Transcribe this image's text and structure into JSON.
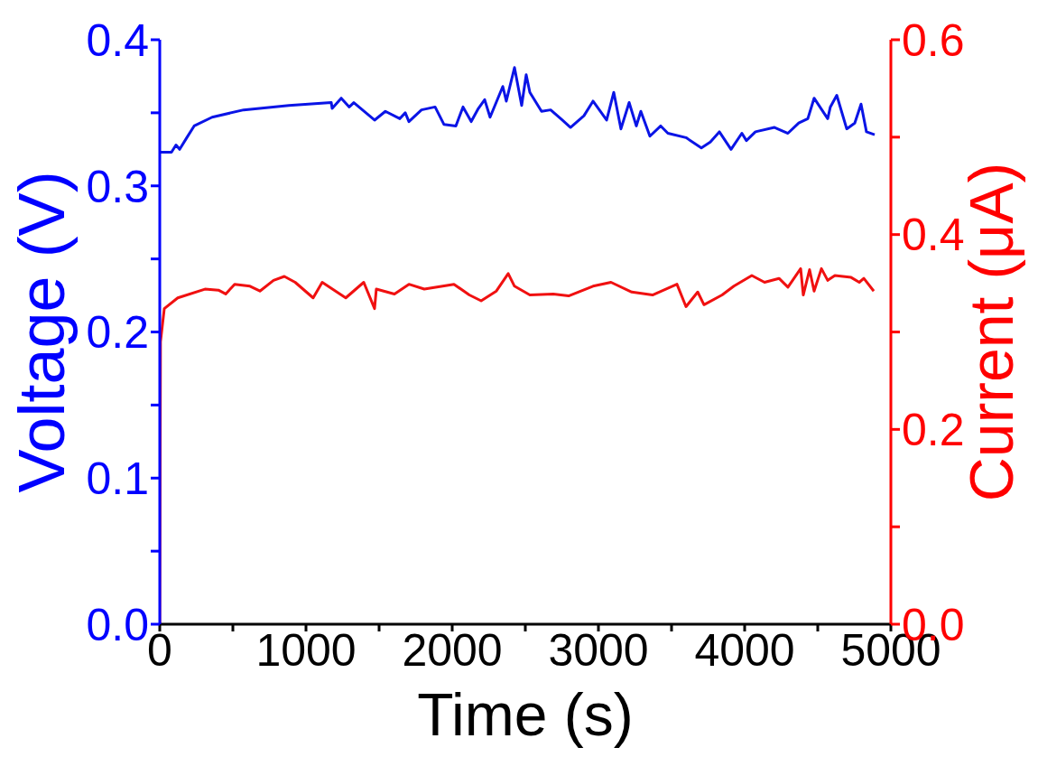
{
  "chart_data": {
    "type": "line",
    "xlabel": "Time (s)",
    "ylabel": "Voltage (V)",
    "y2label": "Current (μA)",
    "xlim": [
      0,
      5000
    ],
    "xticks": [
      0,
      {
        "value": 500,
        "label": null
      },
      1000,
      {
        "value": 1500,
        "label": null
      },
      2000,
      {
        "value": 2500,
        "label": null
      },
      3000,
      {
        "value": 3500,
        "label": null
      },
      4000,
      {
        "value": 4500,
        "label": null
      },
      5000
    ],
    "ylim": [
      0,
      0.4
    ],
    "yticks": [
      {
        "value": 0,
        "label": "0.0"
      },
      {
        "value": 0.05,
        "label": null
      },
      0.1,
      {
        "value": 0.15,
        "label": null
      },
      0.2,
      {
        "value": 0.25,
        "label": null
      },
      0.3,
      {
        "value": 0.35,
        "label": null
      },
      0.4
    ],
    "y2lim": [
      0,
      0.6
    ],
    "y2ticks": [
      {
        "value": 0,
        "label": "0.0"
      },
      {
        "value": 0.1,
        "label": null
      },
      0.2,
      {
        "value": 0.3,
        "label": null
      },
      0.4,
      {
        "value": 0.5,
        "label": null
      },
      0.6
    ],
    "marker": "none",
    "line_style": "solid",
    "series": [
      {
        "color": "#0a14e6",
        "axis": "y",
        "x": [
          0,
          80,
          111,
          136,
          185,
          235,
          358,
          574,
          883,
          1173,
          1179,
          1241,
          1296,
          1327,
          1469,
          1543,
          1642,
          1679,
          1704,
          1790,
          1883,
          1944,
          2025,
          2074,
          2130,
          2179,
          2222,
          2259,
          2346,
          2370,
          2426,
          2475,
          2506,
          2531,
          2611,
          2673,
          2753,
          2809,
          2901,
          2963,
          3056,
          3105,
          3154,
          3210,
          3259,
          3290,
          3352,
          3426,
          3475,
          3599,
          3704,
          3765,
          3827,
          3907,
          3981,
          4012,
          4074,
          4204,
          4296,
          4370,
          4432,
          4475,
          4568,
          4586,
          4630,
          4698,
          4753,
          4796,
          4833,
          4889
        ],
        "values": [
          0.323,
          0.323,
          0.328,
          0.325,
          0.333,
          0.341,
          0.347,
          0.352,
          0.355,
          0.357,
          0.353,
          0.36,
          0.354,
          0.357,
          0.345,
          0.351,
          0.346,
          0.35,
          0.344,
          0.352,
          0.354,
          0.342,
          0.341,
          0.354,
          0.344,
          0.353,
          0.359,
          0.347,
          0.368,
          0.358,
          0.381,
          0.355,
          0.376,
          0.364,
          0.351,
          0.352,
          0.345,
          0.34,
          0.348,
          0.358,
          0.345,
          0.364,
          0.339,
          0.357,
          0.341,
          0.351,
          0.334,
          0.341,
          0.336,
          0.333,
          0.326,
          0.33,
          0.337,
          0.325,
          0.336,
          0.331,
          0.337,
          0.34,
          0.336,
          0.343,
          0.346,
          0.36,
          0.346,
          0.354,
          0.362,
          0.339,
          0.343,
          0.356,
          0.337,
          0.335
        ]
      },
      {
        "color": "#f01010",
        "axis": "y2",
        "x": [
          0,
          5,
          31,
          123,
          309,
          401,
          451,
          512,
          617,
          685,
          778,
          852,
          926,
          1049,
          1111,
          1272,
          1395,
          1469,
          1481,
          1605,
          1704,
          1809,
          2012,
          2117,
          2198,
          2302,
          2383,
          2426,
          2531,
          2691,
          2796,
          2963,
          3086,
          3228,
          3370,
          3537,
          3599,
          3679,
          3722,
          3846,
          3926,
          4049,
          4136,
          4235,
          4296,
          4383,
          4401,
          4444,
          4475,
          4525,
          4568,
          4617,
          4728,
          4784,
          4815,
          4883
        ],
        "values": [
          0.0,
          0.29,
          0.324,
          0.335,
          0.344,
          0.343,
          0.339,
          0.349,
          0.347,
          0.342,
          0.353,
          0.357,
          0.351,
          0.335,
          0.351,
          0.335,
          0.351,
          0.324,
          0.344,
          0.339,
          0.349,
          0.344,
          0.349,
          0.338,
          0.332,
          0.342,
          0.36,
          0.347,
          0.338,
          0.339,
          0.337,
          0.347,
          0.351,
          0.341,
          0.338,
          0.349,
          0.326,
          0.341,
          0.328,
          0.338,
          0.347,
          0.358,
          0.351,
          0.355,
          0.346,
          0.365,
          0.338,
          0.364,
          0.342,
          0.365,
          0.353,
          0.358,
          0.356,
          0.351,
          0.355,
          0.342
        ]
      }
    ]
  }
}
